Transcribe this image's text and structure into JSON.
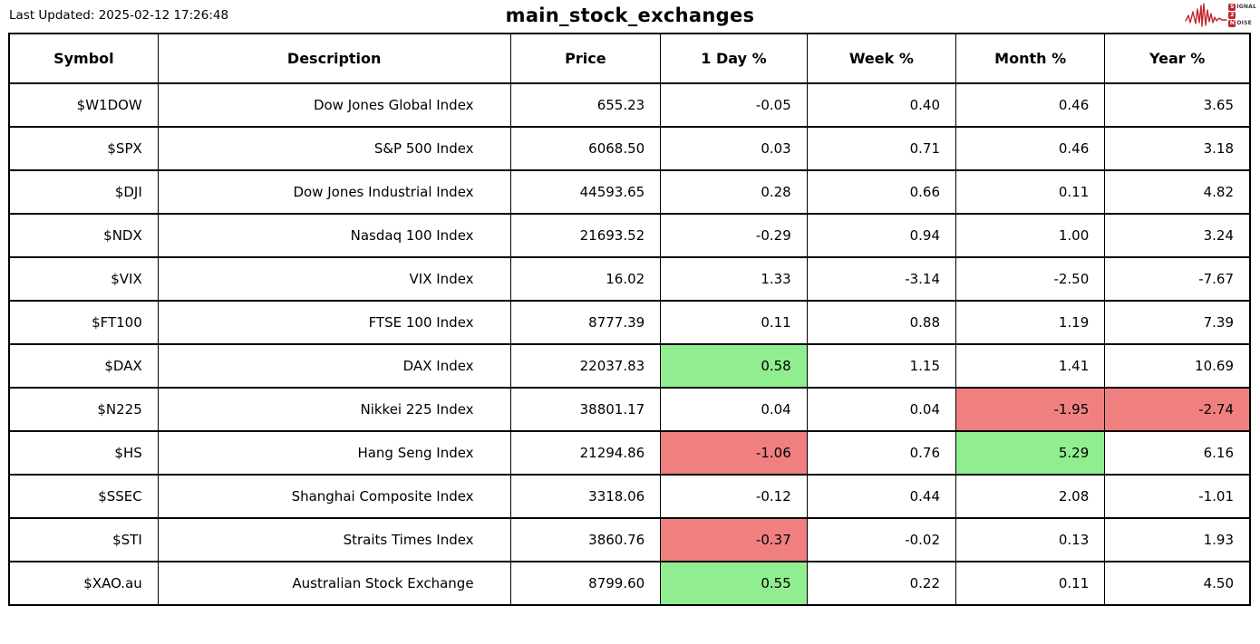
{
  "header": {
    "last_updated": "Last Updated: 2025-02-12 17:26:48",
    "title": "main_stock_exchanges"
  },
  "logo": {
    "signal_initial": "S",
    "signal_rest": "IGNAL",
    "middle": "2",
    "noise_initial": "N",
    "noise_rest": "OISE"
  },
  "colors": {
    "green": "#90ee90",
    "red": "#f08080",
    "logo_red": "#c0272d",
    "border": "#000000",
    "background": "#ffffff"
  },
  "chart_data": {
    "type": "table",
    "title": "main_stock_exchanges",
    "last_updated": "2025-02-12 17:26:48",
    "columns": [
      "Symbol",
      "Description",
      "Price",
      "1 Day %",
      "Week %",
      "Month %",
      "Year %"
    ],
    "column_keys": [
      "symbol",
      "description",
      "price",
      "day-pct",
      "week-pct",
      "month-pct",
      "year-pct"
    ],
    "rows": [
      {
        "cells": [
          {
            "v": "$W1DOW"
          },
          {
            "v": "Dow Jones Global Index"
          },
          {
            "v": "655.23"
          },
          {
            "v": "-0.05"
          },
          {
            "v": "0.40"
          },
          {
            "v": "0.46"
          },
          {
            "v": "3.65"
          }
        ]
      },
      {
        "cells": [
          {
            "v": "$SPX"
          },
          {
            "v": "S&P 500 Index"
          },
          {
            "v": "6068.50"
          },
          {
            "v": "0.03"
          },
          {
            "v": "0.71"
          },
          {
            "v": "0.46"
          },
          {
            "v": "3.18"
          }
        ]
      },
      {
        "cells": [
          {
            "v": "$DJI"
          },
          {
            "v": "Dow Jones Industrial Index"
          },
          {
            "v": "44593.65"
          },
          {
            "v": "0.28"
          },
          {
            "v": "0.66"
          },
          {
            "v": "0.11"
          },
          {
            "v": "4.82"
          }
        ]
      },
      {
        "cells": [
          {
            "v": "$NDX"
          },
          {
            "v": "Nasdaq 100 Index"
          },
          {
            "v": "21693.52"
          },
          {
            "v": "-0.29"
          },
          {
            "v": "0.94"
          },
          {
            "v": "1.00"
          },
          {
            "v": "3.24"
          }
        ]
      },
      {
        "cells": [
          {
            "v": "$VIX"
          },
          {
            "v": "VIX Index"
          },
          {
            "v": "16.02"
          },
          {
            "v": "1.33"
          },
          {
            "v": "-3.14"
          },
          {
            "v": "-2.50"
          },
          {
            "v": "-7.67"
          }
        ]
      },
      {
        "cells": [
          {
            "v": "$FT100"
          },
          {
            "v": "FTSE 100 Index"
          },
          {
            "v": "8777.39"
          },
          {
            "v": "0.11"
          },
          {
            "v": "0.88"
          },
          {
            "v": "1.19"
          },
          {
            "v": "7.39"
          }
        ]
      },
      {
        "cells": [
          {
            "v": "$DAX"
          },
          {
            "v": "DAX Index"
          },
          {
            "v": "22037.83"
          },
          {
            "v": "0.58",
            "bg": "green"
          },
          {
            "v": "1.15"
          },
          {
            "v": "1.41"
          },
          {
            "v": "10.69"
          }
        ]
      },
      {
        "cells": [
          {
            "v": "$N225"
          },
          {
            "v": "Nikkei 225 Index"
          },
          {
            "v": "38801.17"
          },
          {
            "v": "0.04"
          },
          {
            "v": "0.04"
          },
          {
            "v": "-1.95",
            "bg": "red"
          },
          {
            "v": "-2.74",
            "bg": "red"
          }
        ]
      },
      {
        "cells": [
          {
            "v": "$HS"
          },
          {
            "v": "Hang Seng Index"
          },
          {
            "v": "21294.86"
          },
          {
            "v": "-1.06",
            "bg": "red"
          },
          {
            "v": "0.76"
          },
          {
            "v": "5.29",
            "bg": "green"
          },
          {
            "v": "6.16"
          }
        ]
      },
      {
        "cells": [
          {
            "v": "$SSEC"
          },
          {
            "v": "Shanghai Composite Index"
          },
          {
            "v": "3318.06"
          },
          {
            "v": "-0.12"
          },
          {
            "v": "0.44"
          },
          {
            "v": "2.08"
          },
          {
            "v": "-1.01"
          }
        ]
      },
      {
        "cells": [
          {
            "v": "$STI"
          },
          {
            "v": "Straits Times Index"
          },
          {
            "v": "3860.76"
          },
          {
            "v": "-0.37",
            "bg": "red"
          },
          {
            "v": "-0.02"
          },
          {
            "v": "0.13"
          },
          {
            "v": "1.93"
          }
        ]
      },
      {
        "cells": [
          {
            "v": "$XAO.au"
          },
          {
            "v": "Australian Stock Exchange"
          },
          {
            "v": "8799.60"
          },
          {
            "v": "0.55",
            "bg": "green"
          },
          {
            "v": "0.22"
          },
          {
            "v": "0.11"
          },
          {
            "v": "4.50"
          }
        ]
      }
    ]
  }
}
